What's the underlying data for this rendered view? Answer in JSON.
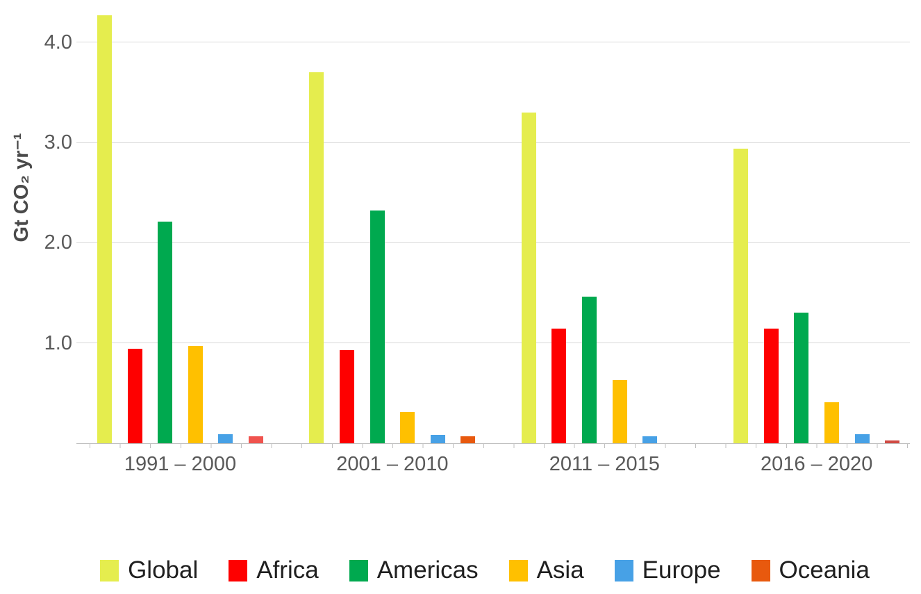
{
  "chart_data": {
    "type": "bar",
    "title": "",
    "xlabel": "",
    "ylabel": "Gt CO₂ yr⁻¹",
    "categories": [
      "1991 – 2000",
      "2001 – 2010",
      "2011 – 2015",
      "2016 – 2020"
    ],
    "series": [
      {
        "name": "Global",
        "color": "#E5ED4E",
        "values": [
          4.27,
          3.7,
          3.3,
          2.94
        ]
      },
      {
        "name": "Africa",
        "color": "#FE0000",
        "values": [
          0.94,
          0.93,
          1.14,
          1.14
        ]
      },
      {
        "name": "Americas",
        "color": "#00A94F",
        "values": [
          2.21,
          2.32,
          1.46,
          1.3
        ]
      },
      {
        "name": "Asia",
        "color": "#FFC000",
        "values": [
          0.97,
          0.31,
          0.63,
          0.41
        ]
      },
      {
        "name": "Europe",
        "color": "#47A1E6",
        "values": [
          0.09,
          0.08,
          0.07,
          0.09
        ]
      },
      {
        "name": "Oceania",
        "color": "#E8590E",
        "values": [
          0.07,
          0.07,
          0.0,
          0.03
        ]
      }
    ],
    "color_overrides": [
      {
        "series": "Oceania",
        "group": 0,
        "color": "#F0534E"
      },
      {
        "series": "Oceania",
        "group": 3,
        "color": "#D04A43"
      }
    ],
    "yticks": [
      1.0,
      2.0,
      3.0,
      4.0
    ],
    "ytick_labels": [
      "1.0",
      "2.0",
      "3.0",
      "4.0"
    ],
    "ylim": [
      0,
      4.42
    ],
    "grid": true,
    "legend_position": "bottom"
  }
}
